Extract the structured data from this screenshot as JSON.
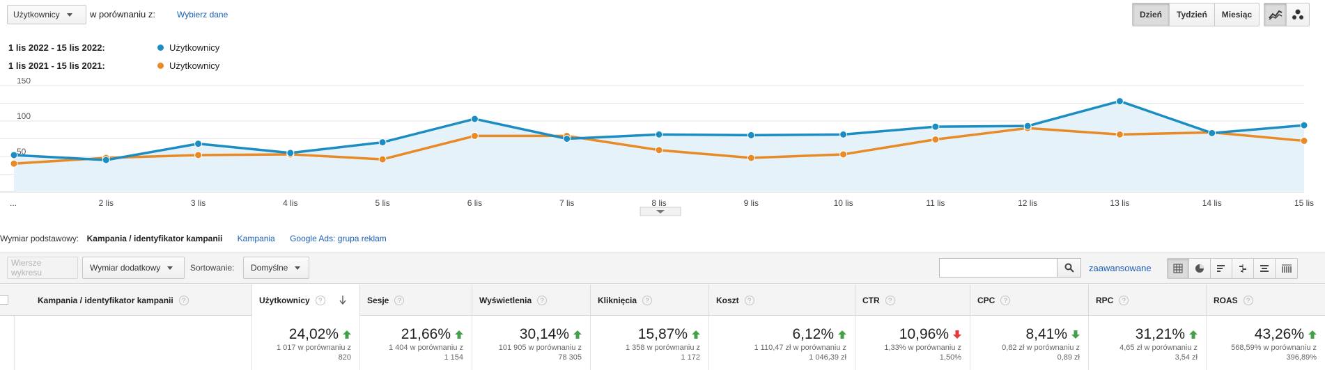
{
  "metric_dropdown": {
    "label": "Użytkownicy"
  },
  "compare": {
    "label": "w porównaniu z:",
    "link": "Wybierz dane"
  },
  "granularity": {
    "day": "Dzień",
    "week": "Tydzień",
    "month": "Miesiąc",
    "selected": "Dzień"
  },
  "chart_mode_icons": [
    "line-chart-icon",
    "motion-chart-icon"
  ],
  "legend": [
    {
      "range": "1 lis 2022 - 15 lis 2022:",
      "series": "Użytkownicy",
      "color": "#1b8dc2"
    },
    {
      "range": "1 lis 2021 - 15 lis 2021:",
      "series": "Użytkownicy",
      "color": "#e88a25"
    }
  ],
  "chart_data": {
    "type": "line",
    "x": [
      "...",
      "2 lis",
      "3 lis",
      "4 lis",
      "5 lis",
      "6 lis",
      "7 lis",
      "8 lis",
      "9 lis",
      "10 lis",
      "11 lis",
      "12 lis",
      "13 lis",
      "14 lis",
      "15 lis"
    ],
    "y_ticks": [
      50,
      100,
      150
    ],
    "ylim": [
      0,
      150
    ],
    "grid": true,
    "series": [
      {
        "name": "Użytkownicy",
        "period": "1 lis 2022 - 15 lis 2022",
        "color": "#1b8dc2",
        "fill": true,
        "values": [
          52,
          45,
          68,
          55,
          70,
          103,
          75,
          81,
          80,
          81,
          92,
          93,
          128,
          83,
          94
        ]
      },
      {
        "name": "Użytkownicy",
        "period": "1 lis 2021 - 15 lis 2021",
        "color": "#e88a25",
        "fill": false,
        "values": [
          40,
          48,
          52,
          53,
          46,
          79,
          79,
          59,
          48,
          53,
          74,
          90,
          81,
          84,
          72
        ]
      }
    ]
  },
  "dimension": {
    "label": "Wymiar podstawowy:",
    "current": "Kampania / identyfikator kampanii",
    "options": [
      "Kampania",
      "Google Ads: grupa reklam"
    ]
  },
  "toolbar": {
    "plot_rows": "Wiersze wykresu",
    "secondary_dim": "Wymiar dodatkowy",
    "sort_label": "Sortowanie:",
    "sort_value": "Domyślne",
    "search_value": "",
    "advanced": "zaawansowane"
  },
  "table": {
    "columns": [
      {
        "label": "Kampania / identyfikator kampanii"
      },
      {
        "label": "Użytkownicy"
      },
      {
        "label": "Sesje"
      },
      {
        "label": "Wyświetlenia"
      },
      {
        "label": "Kliknięcia"
      },
      {
        "label": "Koszt"
      },
      {
        "label": "CTR"
      },
      {
        "label": "CPC"
      },
      {
        "label": "RPC"
      },
      {
        "label": "ROAS"
      }
    ],
    "totals": [
      {
        "pct": "24,02%",
        "dir": "up",
        "cmp1": "1 017 w porównaniu z",
        "cmp2": "820"
      },
      {
        "pct": "21,66%",
        "dir": "up",
        "cmp1": "1 404 w porównaniu z",
        "cmp2": "1 154"
      },
      {
        "pct": "30,14%",
        "dir": "up",
        "cmp1": "101 905 w porównaniu z",
        "cmp2": "78 305"
      },
      {
        "pct": "15,87%",
        "dir": "up",
        "cmp1": "1 358 w porównaniu z",
        "cmp2": "1 172"
      },
      {
        "pct": "6,12%",
        "dir": "up",
        "cmp1": "1 110,47 zł w porównaniu z",
        "cmp2": "1 046,39 zł"
      },
      {
        "pct": "10,96%",
        "dir": "down-bad",
        "cmp1": "1,33% w porównaniu z",
        "cmp2": "1,50%"
      },
      {
        "pct": "8,41%",
        "dir": "down-good",
        "cmp1": "0,82 zł w porównaniu z",
        "cmp2": "0,89 zł"
      },
      {
        "pct": "31,21%",
        "dir": "up",
        "cmp1": "4,65 zł w porównaniu z",
        "cmp2": "3,54 zł"
      },
      {
        "pct": "43,26%",
        "dir": "up",
        "cmp1": "568,59% w porównaniu z",
        "cmp2": "396,89%"
      }
    ]
  }
}
